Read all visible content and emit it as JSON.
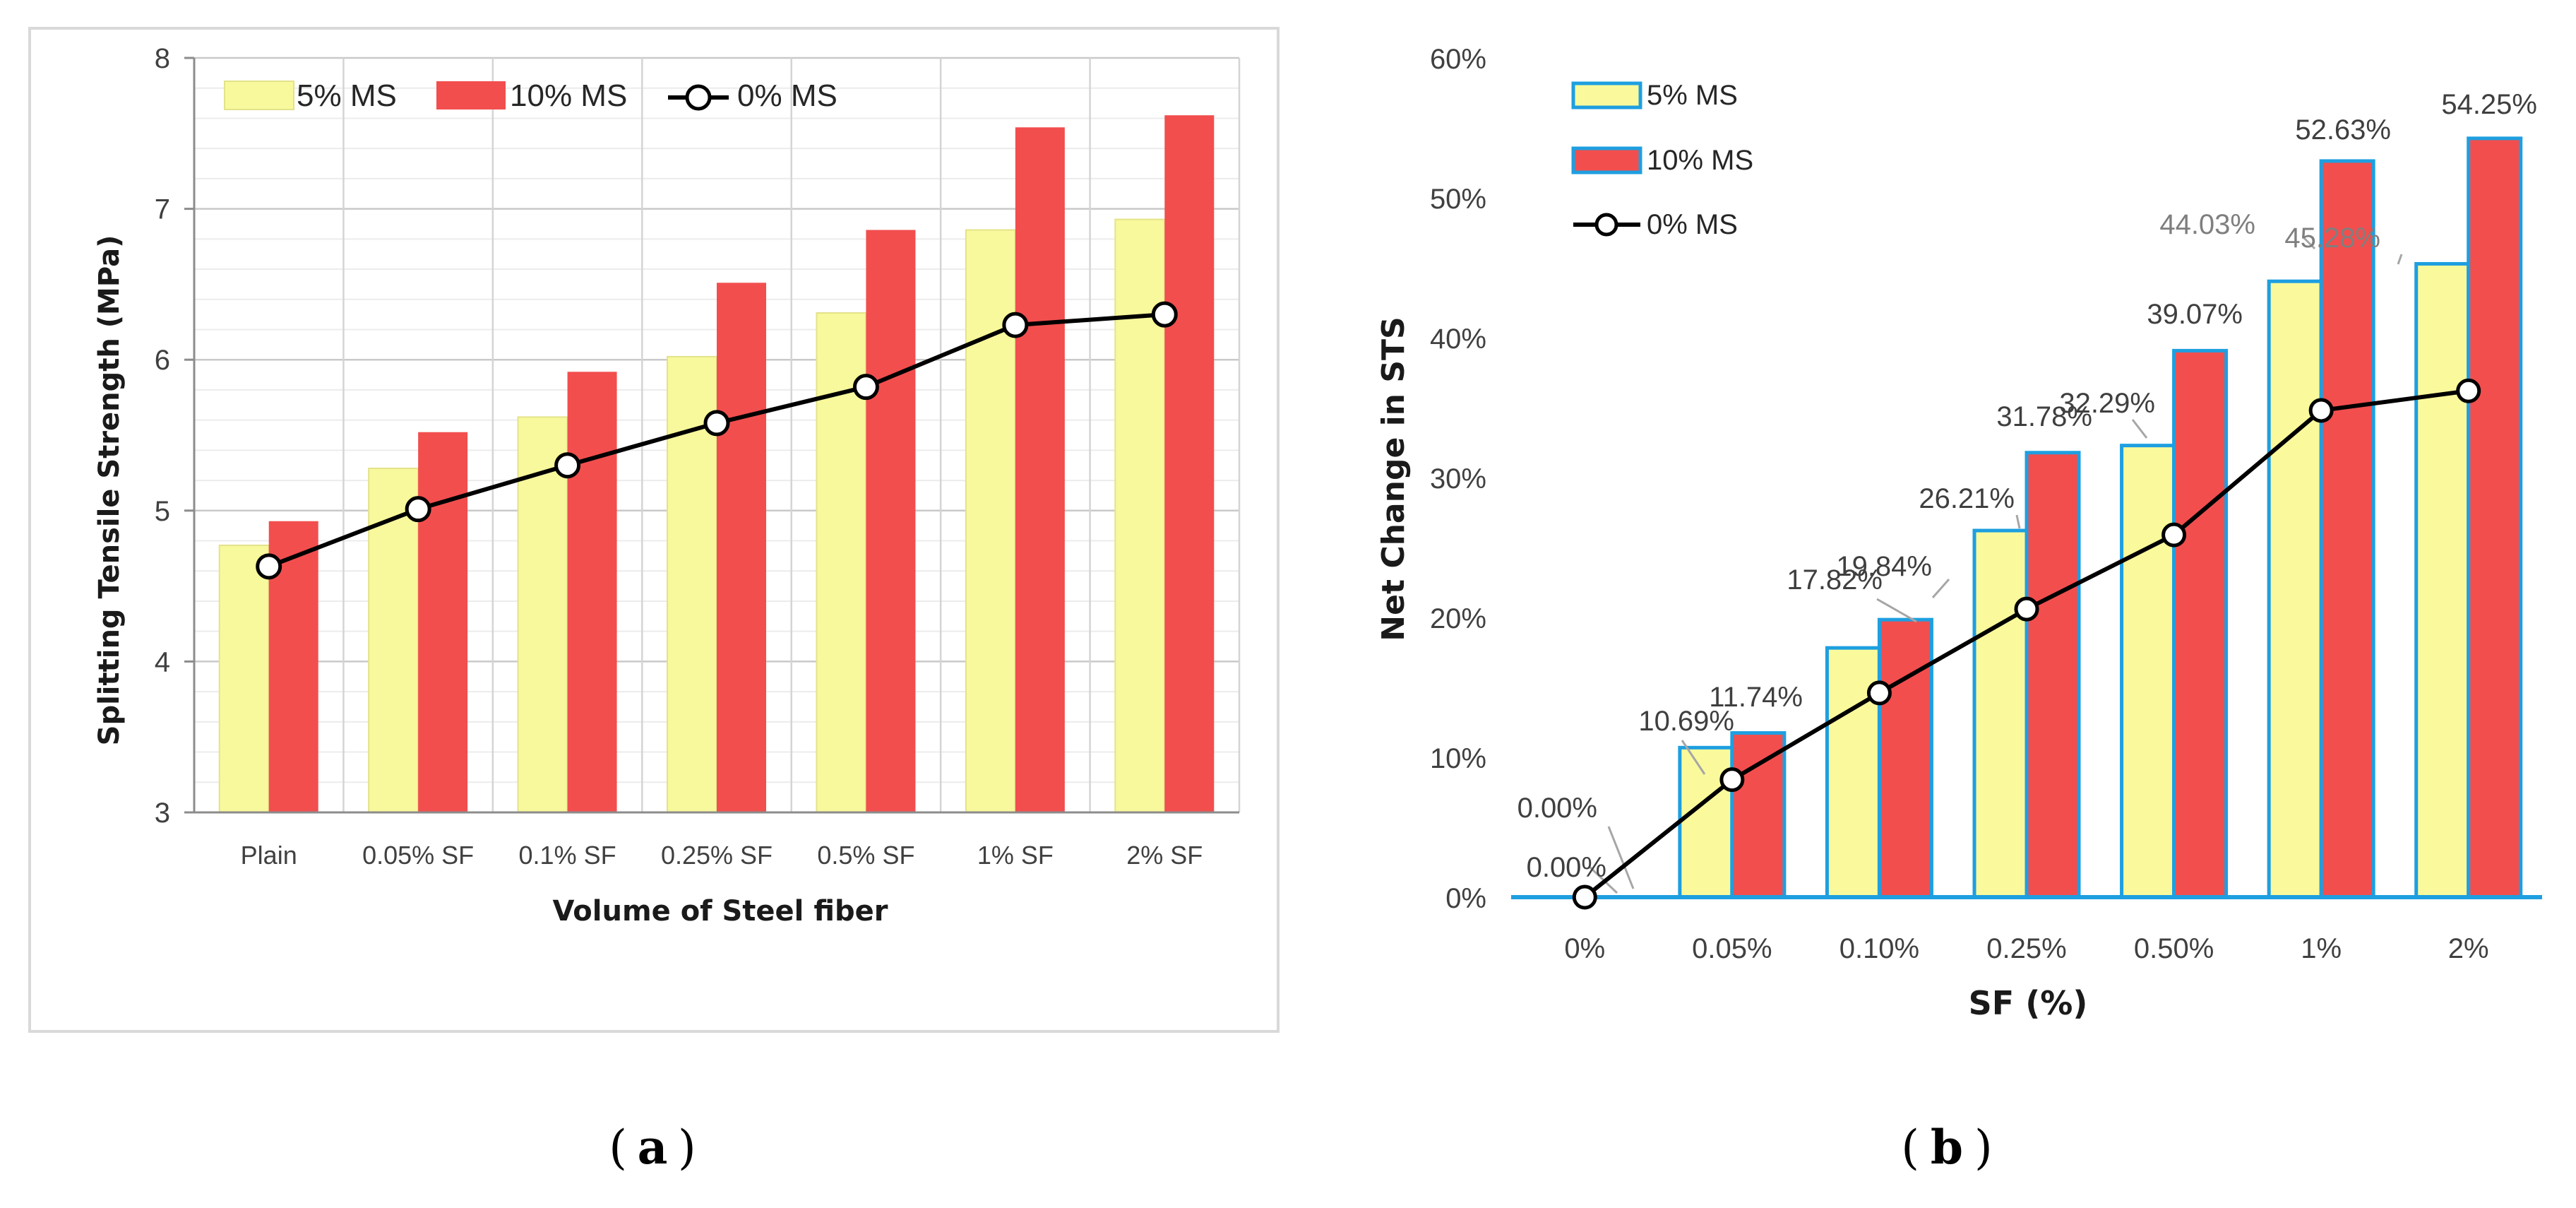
{
  "chart_data": [
    {
      "id": "a",
      "type": "bar",
      "title": "",
      "caption": "a",
      "xlabel": "Volume of Steel fiber",
      "ylabel": "Splitting Tensile Strength (MPa)",
      "ylim": [
        3,
        8
      ],
      "yticks": [
        "3",
        "4",
        "5",
        "6",
        "7",
        "8"
      ],
      "grid": true,
      "legend_position": "top-left",
      "categories": [
        "Plain",
        "0.05% SF",
        "0.1% SF",
        "0.25% SF",
        "0.5% SF",
        "1% SF",
        "2% SF"
      ],
      "series": [
        {
          "name": "5% MS",
          "kind": "bar",
          "color": "#F8F89C",
          "values": [
            4.77,
            5.28,
            5.62,
            6.02,
            6.31,
            6.86,
            6.93
          ]
        },
        {
          "name": "10% MS",
          "kind": "bar",
          "color": "#F24E4E",
          "values": [
            4.93,
            5.52,
            5.92,
            6.51,
            6.86,
            7.54,
            7.62
          ]
        },
        {
          "name": "0% MS",
          "kind": "line",
          "color": "#000000",
          "values": [
            4.63,
            5.01,
            5.3,
            5.58,
            5.82,
            6.23,
            6.3
          ]
        }
      ]
    },
    {
      "id": "b",
      "type": "bar",
      "title": "",
      "caption": "b",
      "xlabel": "SF (%)",
      "ylabel": "Net Change in STS",
      "ylim": [
        0,
        60
      ],
      "yticks": [
        "0%",
        "10%",
        "20%",
        "30%",
        "40%",
        "50%",
        "60%"
      ],
      "grid": false,
      "legend_position": "top-left",
      "categories": [
        "0%",
        "0.05%",
        "0.10%",
        "0.25%",
        "0.50%",
        "1%",
        "2%"
      ],
      "series": [
        {
          "name": "5% MS",
          "kind": "bar",
          "color": "#FAFA9C",
          "edge": "#1E9FE0",
          "values": [
            0.0,
            10.69,
            17.82,
            26.21,
            32.29,
            44.03,
            45.28
          ],
          "labels": [
            "0.00%",
            "10.69%",
            "17.82%",
            "26.21%",
            "32.29%",
            "44.03%",
            "45.28%"
          ]
        },
        {
          "name": "10% MS",
          "kind": "bar",
          "color": "#F24E4E",
          "edge": "#1E9FE0",
          "values": [
            0.0,
            11.74,
            19.84,
            31.78,
            39.07,
            52.63,
            54.25
          ],
          "labels": [
            "0.00%",
            "11.74%",
            "19.84%",
            "31.78%",
            "39.07%",
            "52.63%",
            "54.25%"
          ]
        },
        {
          "name": "0% MS",
          "kind": "line",
          "color": "#000000",
          "values": [
            0.0,
            8.4,
            14.6,
            20.6,
            25.9,
            34.8,
            36.2
          ]
        }
      ]
    }
  ]
}
